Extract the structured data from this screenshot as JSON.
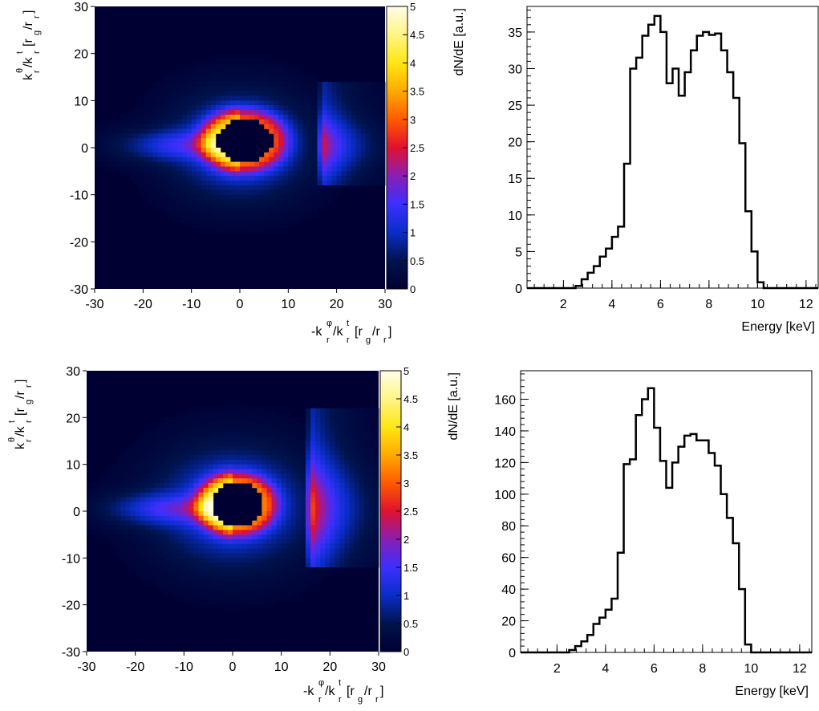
{
  "chart_data": [
    {
      "type": "heatmap",
      "panel": "top-left",
      "xlim": [
        -30,
        30
      ],
      "ylim": [
        -30,
        30
      ],
      "xticks": [
        "-30",
        "-20",
        "-10",
        "0",
        "10",
        "20",
        "30"
      ],
      "yticks": [
        "-30",
        "-20",
        "-10",
        "0",
        "10",
        "20",
        "30"
      ],
      "xlabel": "-k^φ/k^t [r_g/r]",
      "ylabel": "k^θ/k^t [r_g/r]",
      "colorbar": {
        "min": 0,
        "max": 5,
        "ticks": [
          "0",
          "0.5",
          "1",
          "1.5",
          "2",
          "2.5",
          "3",
          "3.5",
          "4",
          "4.5",
          "5"
        ]
      },
      "features": {
        "ring": {
          "cx": 0,
          "cy": 0.5,
          "rx": 9,
          "ry": 7,
          "peak": 2.6
        },
        "shadow": {
          "cx": 1,
          "cy": 1.5,
          "rx": 6,
          "ry": 4.5
        },
        "plume": {
          "x0": -30,
          "x1": 4,
          "cy": 0.5,
          "level": 0.9
        },
        "band": {
          "x": 17,
          "y0": -6,
          "y1": 12,
          "peak": 2.2
        }
      }
    },
    {
      "type": "bar",
      "panel": "top-right",
      "xlim": [
        0.5,
        12.5
      ],
      "ylim": [
        0,
        38.5
      ],
      "xticks": [
        "2",
        "4",
        "6",
        "8",
        "10",
        "12"
      ],
      "yticks": [
        "0",
        "5",
        "10",
        "15",
        "20",
        "25",
        "30",
        "35"
      ],
      "xlabel": "Energy [keV]",
      "ylabel": "dN/dE [a.u.]",
      "bin_width": 0.25,
      "x_start": 0.5,
      "values": [
        0,
        0,
        0,
        0,
        0,
        0,
        0,
        0,
        0.3,
        1.2,
        2.1,
        3.0,
        4.3,
        5.4,
        7.0,
        8.4,
        17.0,
        30.0,
        31.5,
        34.5,
        36.0,
        37.2,
        35.0,
        28.0,
        30.0,
        26.3,
        29.5,
        32.5,
        34.5,
        35.0,
        34.6,
        34.8,
        32.5,
        29.5,
        26.0,
        19.8,
        10.5,
        5.0,
        0.8,
        0,
        0,
        0,
        0,
        0,
        0,
        0,
        0,
        0
      ]
    },
    {
      "type": "heatmap",
      "panel": "bottom-left",
      "xlim": [
        -30,
        30
      ],
      "ylim": [
        -30,
        30
      ],
      "xticks": [
        "-30",
        "-20",
        "-10",
        "0",
        "10",
        "20",
        "30"
      ],
      "yticks": [
        "-30",
        "-20",
        "-10",
        "0",
        "10",
        "20",
        "30"
      ],
      "xlabel": "-k^φ/k^t [r_g/r]",
      "ylabel": "k^θ/k^t [r_g/r]",
      "colorbar": {
        "min": 0,
        "max": 5,
        "ticks": [
          "0",
          "0.5",
          "1",
          "1.5",
          "2",
          "2.5",
          "3",
          "3.5",
          "4",
          "4.5",
          "5"
        ]
      },
      "features": {
        "ring": {
          "cx": 0,
          "cy": 1,
          "rx": 10,
          "ry": 8,
          "peak": 2.9
        },
        "shadow": {
          "cx": 1,
          "cy": 1.5,
          "rx": 5.5,
          "ry": 4.5
        },
        "plume": {
          "x0": -30,
          "x1": 4,
          "cy": 0.5,
          "level": 1.0
        },
        "band": {
          "x": 16,
          "y0": -10,
          "y1": 20,
          "peak": 2.5
        }
      }
    },
    {
      "type": "bar",
      "panel": "bottom-right",
      "xlim": [
        0.5,
        12.5
      ],
      "ylim": [
        0,
        178
      ],
      "xticks": [
        "2",
        "4",
        "6",
        "8",
        "10",
        "12"
      ],
      "yticks": [
        "0",
        "20",
        "40",
        "60",
        "80",
        "100",
        "120",
        "140",
        "160"
      ],
      "xlabel": "Energy [keV]",
      "ylabel": "dN/dE [a.u.]",
      "bin_width": 0.25,
      "x_start": 0.5,
      "values": [
        0,
        0,
        0,
        0,
        0,
        0,
        0,
        0,
        1.5,
        4,
        7,
        11,
        18,
        22,
        27,
        34,
        63,
        119,
        122,
        150,
        160,
        167,
        142,
        121,
        104,
        120,
        130,
        137,
        138,
        134,
        134,
        126,
        118,
        100,
        85,
        69,
        40,
        5,
        0,
        0,
        0,
        0,
        0,
        0,
        0,
        0,
        0,
        0
      ]
    }
  ]
}
